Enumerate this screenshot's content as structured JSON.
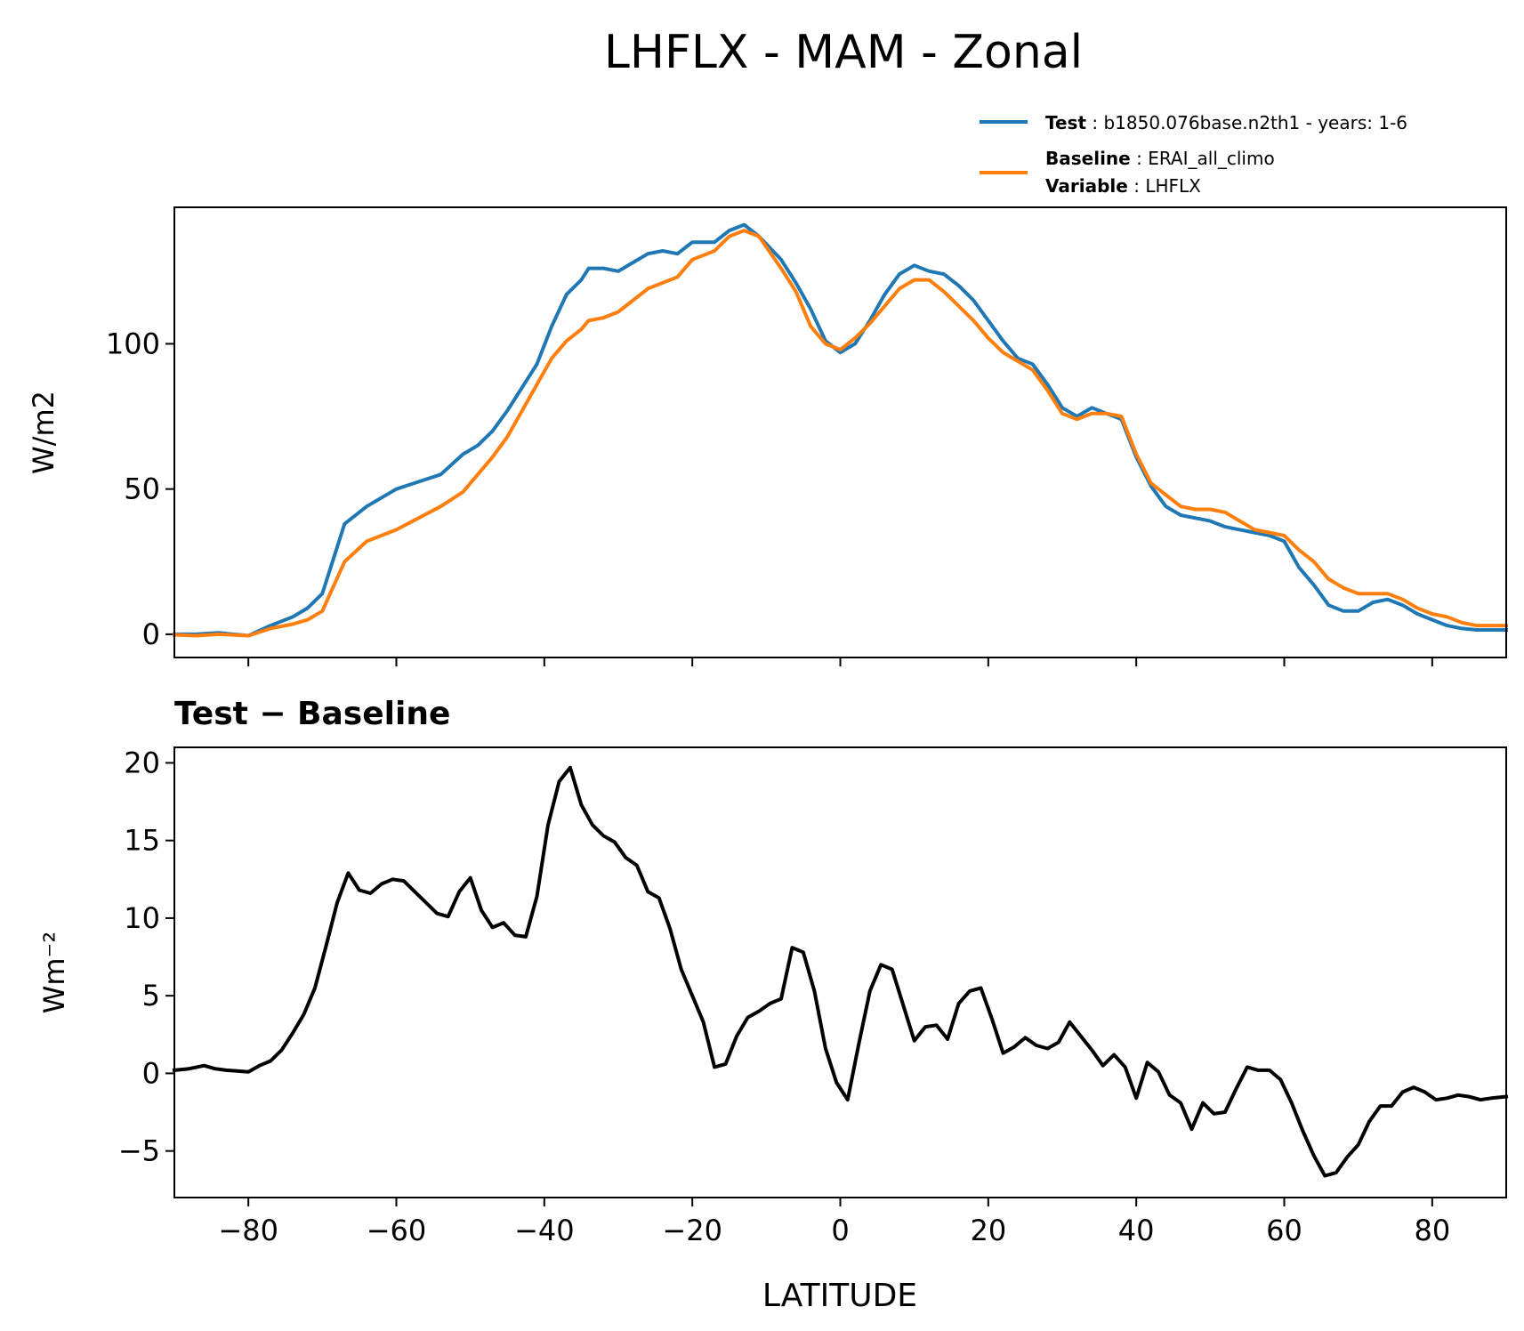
{
  "figure": {
    "title": "LHFLX - MAM - Zonal"
  },
  "legend": {
    "test_label": "Test",
    "test_value": "b1850.076base.n2th1 - years: 1-6",
    "baseline_label": "Baseline",
    "baseline_value": "ERAI_all_climo",
    "variable_label": "Variable",
    "variable_value": "LHFLX"
  },
  "colors": {
    "test": "#1f77b4",
    "baseline": "#ff7f0e",
    "diff": "#000000"
  },
  "chart_data": [
    {
      "type": "line",
      "title": "",
      "xlabel": "",
      "ylabel": "W/m2",
      "xlim": [
        -90,
        90
      ],
      "ylim": [
        -8,
        147
      ],
      "yticks": [
        0,
        50,
        100
      ],
      "xticks": [
        -80,
        -60,
        -40,
        -20,
        0,
        20,
        40,
        60,
        80
      ],
      "legend_position": "above-right",
      "series": [
        {
          "name": "Test",
          "x": [
            -90,
            -87,
            -84,
            -80,
            -77,
            -74,
            -72,
            -70,
            -67,
            -64,
            -60,
            -57,
            -54,
            -51,
            -49,
            -47,
            -45,
            -43,
            -41,
            -39,
            -37,
            -35,
            -34,
            -32,
            -30,
            -28,
            -26,
            -24,
            -22,
            -20,
            -17,
            -15,
            -13,
            -11,
            -8,
            -6,
            -4,
            -2,
            0,
            2,
            4,
            6,
            8,
            10,
            12,
            14,
            16,
            18,
            20,
            22,
            24,
            26,
            28,
            30,
            32,
            34,
            36,
            38,
            40,
            42,
            44,
            46,
            48,
            50,
            52,
            54,
            56,
            58,
            60,
            62,
            64,
            66,
            68,
            70,
            72,
            74,
            76,
            78,
            80,
            82,
            84,
            86,
            88,
            90
          ],
          "values": [
            0,
            0,
            0.5,
            -0.5,
            3,
            6,
            9,
            14,
            38,
            44,
            50,
            52.5,
            55,
            62,
            65,
            70,
            77,
            85,
            93,
            106,
            117,
            122,
            126,
            126,
            125,
            128,
            131,
            132,
            131,
            135,
            135,
            139,
            141,
            137,
            129,
            121,
            112,
            101,
            97,
            100,
            108,
            117,
            124,
            127,
            125,
            124,
            120,
            115,
            108,
            101,
            95,
            93,
            86,
            78,
            75,
            78,
            76,
            74,
            61,
            51,
            44,
            41,
            40,
            39,
            37,
            36,
            35,
            34,
            32,
            23,
            17,
            10,
            8,
            8,
            11,
            12,
            10,
            7,
            5,
            3,
            2,
            1.5,
            1.5,
            1.5
          ]
        },
        {
          "name": "Baseline",
          "x": [
            -90,
            -87,
            -84,
            -80,
            -77,
            -74,
            -72,
            -70,
            -67,
            -64,
            -60,
            -57,
            -54,
            -51,
            -49,
            -47,
            -45,
            -43,
            -41,
            -39,
            -37,
            -35,
            -34,
            -32,
            -30,
            -28,
            -26,
            -24,
            -22,
            -20,
            -17,
            -15,
            -13,
            -11,
            -8,
            -6,
            -4,
            -2,
            0,
            2,
            4,
            6,
            8,
            10,
            12,
            14,
            16,
            18,
            20,
            22,
            24,
            26,
            28,
            30,
            32,
            34,
            36,
            38,
            40,
            42,
            44,
            46,
            48,
            50,
            52,
            54,
            56,
            58,
            60,
            62,
            64,
            66,
            68,
            70,
            72,
            74,
            76,
            78,
            80,
            82,
            84,
            86,
            88,
            90
          ],
          "values": [
            -0.2,
            -0.5,
            0,
            -0.5,
            2,
            3.5,
            5,
            8,
            25,
            32,
            36,
            40,
            44,
            49,
            55,
            61,
            68,
            77,
            86,
            95,
            101,
            105,
            108,
            109,
            111,
            115,
            119,
            121,
            123,
            129,
            132,
            137,
            139,
            137,
            126,
            118,
            106,
            100,
            98,
            102,
            107,
            113,
            119,
            122,
            122,
            118,
            113,
            108,
            102,
            97,
            94,
            91,
            84,
            76,
            74,
            76,
            76,
            75,
            62,
            52,
            48,
            44,
            43,
            43,
            42,
            39,
            36,
            35,
            34,
            29,
            25,
            19,
            16,
            14,
            14,
            14,
            12,
            9,
            7,
            6,
            4,
            3,
            3,
            3
          ]
        }
      ]
    },
    {
      "type": "line",
      "title": "Test − Baseline",
      "xlabel": "LATITUDE",
      "ylabel": "Wm⁻²",
      "xlim": [
        -90,
        90
      ],
      "ylim": [
        -8,
        21
      ],
      "yticks": [
        -5,
        0,
        5,
        10,
        15,
        20
      ],
      "xticks": [
        -80,
        -60,
        -40,
        -20,
        0,
        20,
        40,
        60,
        80
      ],
      "series": [
        {
          "x": [
            -90,
            -88,
            -86,
            -84.5,
            -83,
            -81.5,
            -80,
            -78.5,
            -77,
            -75.5,
            -74,
            -72.5,
            -71,
            -69.5,
            -68,
            -66.5,
            -65,
            -63.5,
            -62,
            -60.5,
            -59,
            -57.5,
            -56,
            -54.5,
            -53,
            -51.5,
            -50,
            -48.5,
            -47,
            -45.5,
            -44,
            -42.5,
            -41,
            -39.5,
            -38,
            -36.5,
            -35,
            -33.5,
            -32,
            -30.5,
            -29,
            -27.5,
            -26,
            -24.5,
            -23,
            -21.5,
            -20,
            -18.5,
            -17,
            -15.5,
            -14,
            -12.5,
            -11,
            -9.5,
            -8,
            -6.5,
            -5,
            -3.5,
            -2,
            -0.5,
            1,
            2.5,
            4,
            5.5,
            7,
            8.5,
            10,
            11.5,
            13,
            14.5,
            16,
            17.5,
            19,
            20.5,
            22,
            23.5,
            25,
            26.5,
            28,
            29.5,
            31,
            32.5,
            34,
            35.5,
            37,
            38.5,
            40,
            41.5,
            43,
            44.5,
            46,
            47.5,
            49,
            50.5,
            52,
            53.5,
            55,
            56.5,
            58,
            59.5,
            61,
            62.5,
            64,
            65.5,
            67,
            68.5,
            70,
            71.5,
            73,
            74.5,
            76,
            77.5,
            79,
            80.5,
            82,
            83.5,
            85,
            86.5,
            88,
            90
          ],
          "values": [
            0.2,
            0.3,
            0.5,
            0.3,
            0.2,
            0.15,
            0.1,
            0.5,
            0.8,
            1.5,
            2.6,
            3.8,
            5.5,
            8.2,
            11,
            12.9,
            11.8,
            11.6,
            12.2,
            12.5,
            12.4,
            11.7,
            11,
            10.3,
            10.1,
            11.7,
            12.6,
            10.5,
            9.4,
            9.7,
            8.9,
            8.8,
            11.4,
            16,
            18.8,
            19.7,
            17.3,
            16,
            15.3,
            14.9,
            13.9,
            13.4,
            11.7,
            11.3,
            9.3,
            6.7,
            5,
            3.3,
            0.4,
            0.6,
            2.4,
            3.6,
            4,
            4.5,
            4.8,
            8.1,
            7.8,
            5.3,
            1.6,
            -0.6,
            -1.7,
            1.9,
            5.3,
            7,
            6.7,
            4.4,
            2.1,
            3,
            3.1,
            2.2,
            4.5,
            5.3,
            5.5,
            3.5,
            1.3,
            1.7,
            2.3,
            1.8,
            1.6,
            2,
            3.3,
            2.4,
            1.5,
            0.5,
            1.2,
            0.4,
            -1.6,
            0.7,
            0.1,
            -1.4,
            -1.9,
            -3.6,
            -1.9,
            -2.6,
            -2.5,
            -1,
            0.4,
            0.2,
            0.2,
            -0.4,
            -1.9,
            -3.7,
            -5.3,
            -6.6,
            -6.4,
            -5.4,
            -4.6,
            -3.1,
            -2.1,
            -2.1,
            -1.2,
            -0.9,
            -1.2,
            -1.7,
            -1.6,
            -1.4,
            -1.5,
            -1.7,
            -1.6,
            -1.5
          ]
        }
      ]
    }
  ]
}
